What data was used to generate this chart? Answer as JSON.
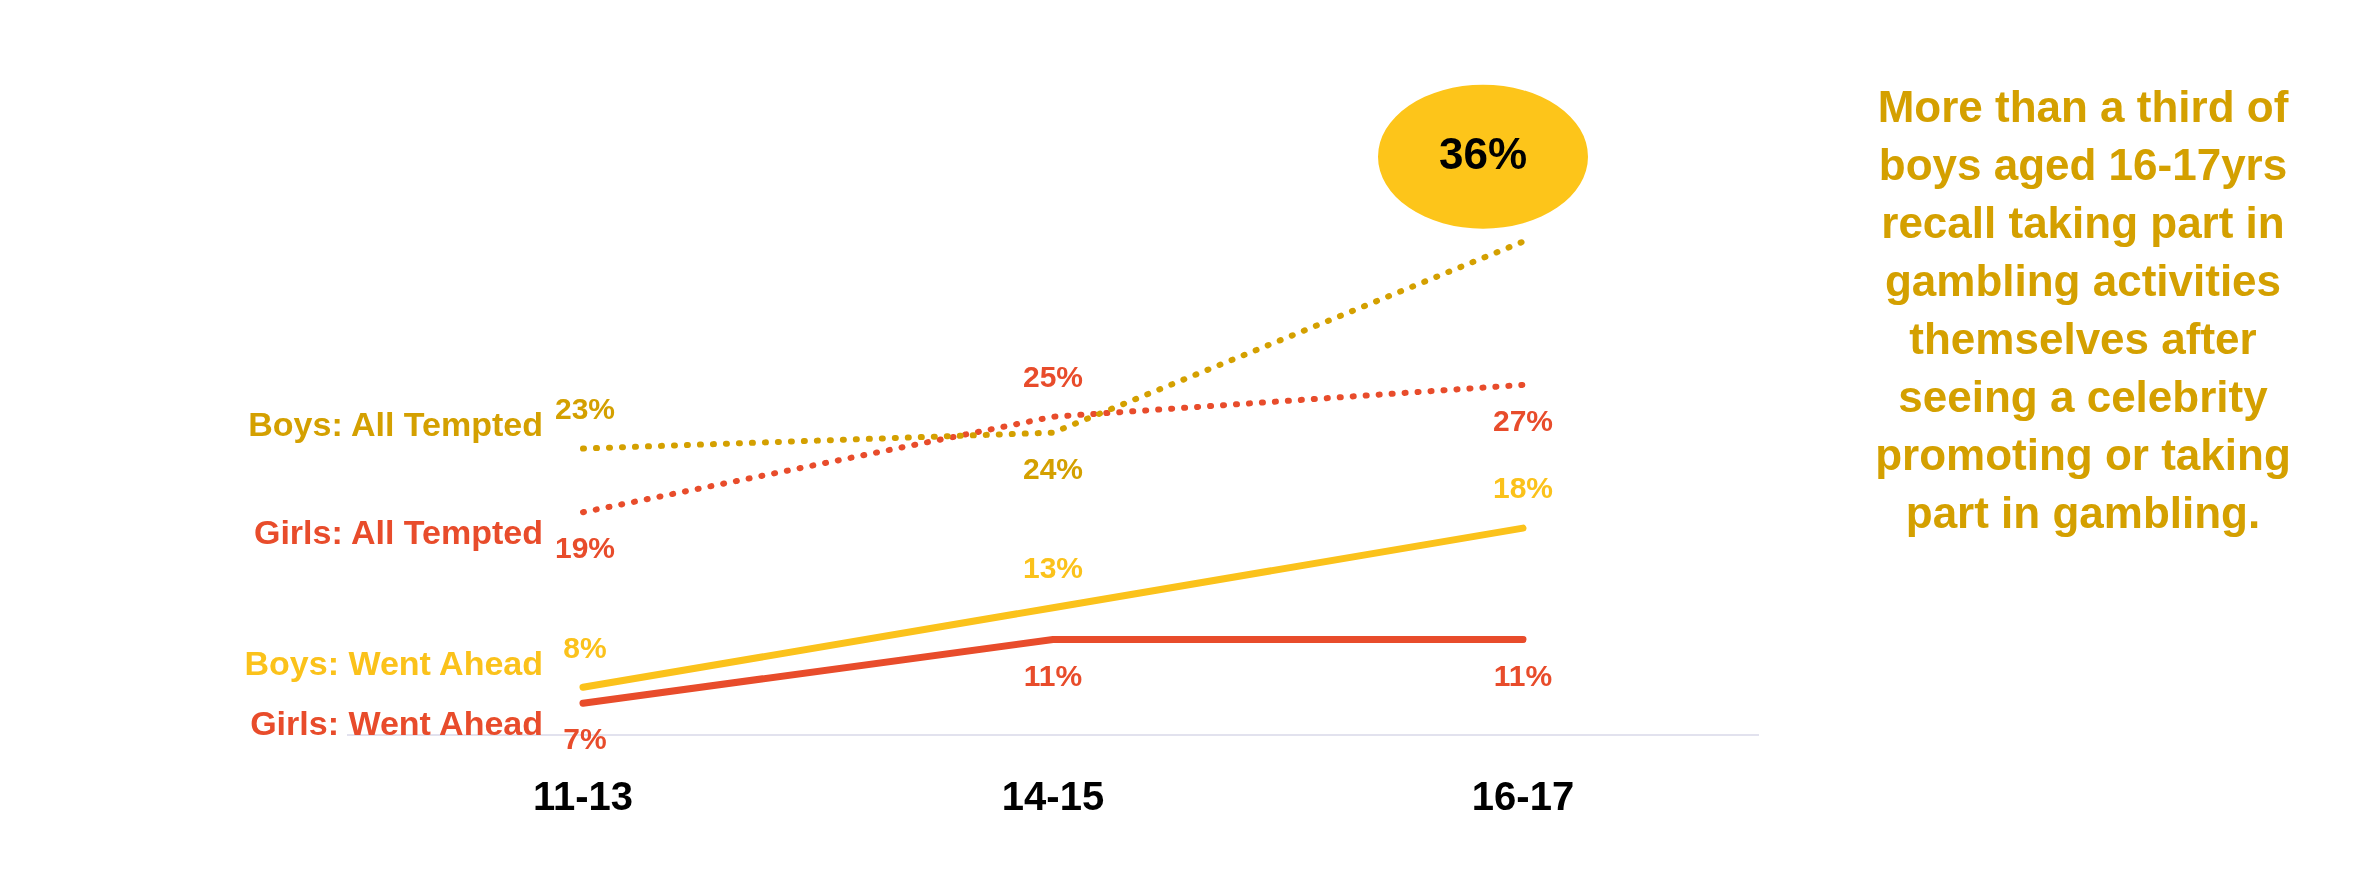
{
  "chart_data": {
    "type": "line",
    "categories": [
      "11-13",
      "14-15",
      "16-17"
    ],
    "data_labels": true,
    "legend": false,
    "grid": false,
    "marker": "none",
    "annotations": [
      "More than a third of boys aged 16-17yrs recall taking part in gambling activities themselves after seeing a celebrity promoting or taking part in gambling."
    ],
    "series": [
      {
        "name": "Boys: All Tempted",
        "color": "#d4a000",
        "line_style": "dotted",
        "values": [
          23,
          24,
          36
        ],
        "value_labels": [
          "23%",
          "24%",
          "36%"
        ]
      },
      {
        "name": "Girls: All Tempted",
        "color": "#e84c2b",
        "line_style": "dotted",
        "values": [
          19,
          25,
          27
        ],
        "value_labels": [
          "19%",
          "25%",
          "27%"
        ]
      },
      {
        "name": "Boys: Went Ahead",
        "color": "#fbc21b",
        "line_style": "solid",
        "values": [
          8,
          13,
          18
        ],
        "value_labels": [
          "8%",
          "13%",
          "18%"
        ]
      },
      {
        "name": "Girls: Went Ahead",
        "color": "#e84c2b",
        "line_style": "solid",
        "values": [
          7,
          11,
          11
        ],
        "value_labels": [
          "7%",
          "11%",
          "11%"
        ]
      }
    ]
  }
}
